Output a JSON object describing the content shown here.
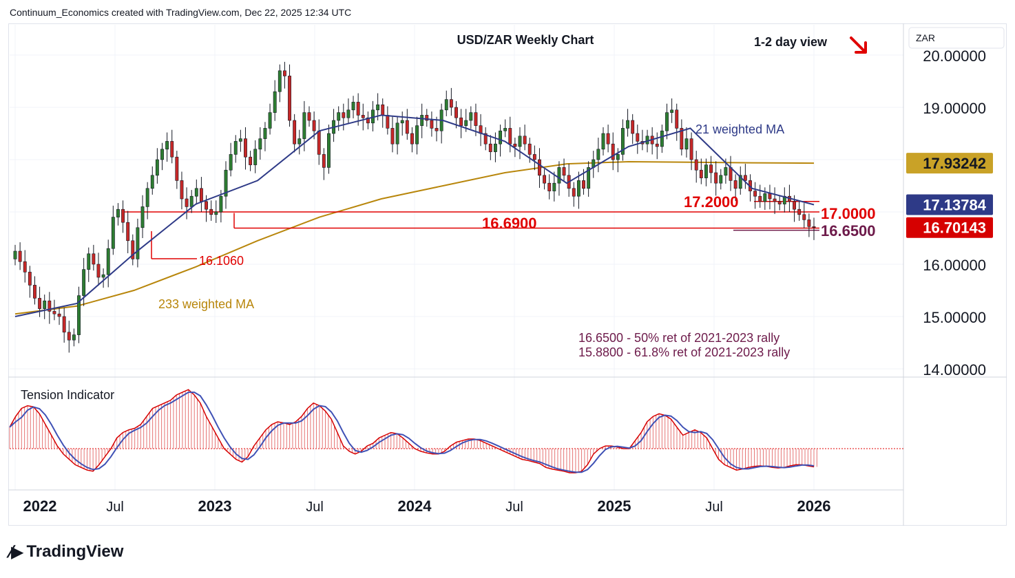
{
  "header": {
    "credit": "Continuum_Economics created with TradingView.com, Dec 22, 2025 12:34 UTC"
  },
  "footer": {
    "brand": "TradingView",
    "logo_icon": "tradingview-logo-icon"
  },
  "chart_data": {
    "type": "candlestick",
    "title": "USD/ZAR Weekly Chart",
    "view_label": "1-2 day view",
    "view_arrow": "down-right-arrow-icon",
    "currency_label": "ZAR",
    "y_axis": {
      "ticks": [
        "20.00000",
        "19.00000",
        "16.00000",
        "15.00000",
        "14.00000"
      ],
      "ylim": [
        13.9,
        20.5
      ]
    },
    "x_axis": {
      "ticks": [
        "2022",
        "Jul",
        "2023",
        "Jul",
        "2024",
        "Jul",
        "2025",
        "Jul",
        "2026"
      ]
    },
    "price_tags": [
      {
        "label": "17.93242",
        "value": 17.93242,
        "bg": "#c9a227",
        "fg": "#131722"
      },
      {
        "label": "17.13784",
        "value": 17.13784,
        "bg": "#2e3a87",
        "fg": "#ffffff"
      },
      {
        "label": "16.70143",
        "value": 16.70143,
        "bg": "#d60000",
        "fg": "#ffffff"
      }
    ],
    "levels": [
      {
        "label": "17.2000",
        "value": 17.2
      },
      {
        "label": "17.0000",
        "value": 17.0
      },
      {
        "label": "16.6900",
        "value": 16.69
      },
      {
        "label": "16.6500",
        "value": 16.65
      },
      {
        "label": "16.1060",
        "value": 16.106
      }
    ],
    "ma_labels": {
      "ma21": "21 weighted MA",
      "ma233": "233 weighted MA"
    },
    "notes": [
      "16.6500 - 50% ret of 2021-2023 rally",
      "15.8800 - 61.8% ret of 2021-2023 rally"
    ],
    "closes": [
      16.25,
      16.05,
      15.85,
      15.6,
      15.35,
      15.15,
      15.3,
      15.1,
      15.05,
      15.0,
      14.7,
      14.55,
      14.65,
      15.4,
      15.9,
      16.2,
      16.0,
      15.75,
      15.8,
      16.3,
      16.9,
      17.05,
      16.8,
      16.45,
      16.1,
      16.7,
      17.1,
      17.45,
      17.7,
      18.0,
      18.2,
      18.35,
      18.05,
      17.6,
      17.25,
      17.1,
      17.3,
      17.45,
      17.2,
      17.05,
      16.95,
      17.0,
      17.3,
      17.8,
      18.1,
      18.35,
      18.4,
      18.05,
      17.9,
      18.2,
      18.4,
      18.6,
      18.9,
      19.3,
      19.7,
      19.6,
      18.75,
      18.3,
      18.4,
      18.9,
      18.75,
      18.55,
      18.1,
      17.85,
      18.5,
      18.75,
      18.9,
      18.8,
      18.95,
      19.1,
      18.85,
      18.8,
      18.7,
      18.95,
      19.05,
      18.85,
      18.6,
      18.3,
      18.7,
      18.75,
      18.5,
      18.3,
      18.65,
      18.85,
      18.75,
      18.6,
      18.55,
      18.95,
      19.15,
      19.0,
      18.8,
      18.65,
      18.75,
      18.9,
      18.65,
      18.5,
      18.3,
      18.15,
      18.3,
      18.55,
      18.6,
      18.3,
      18.25,
      18.45,
      18.3,
      18.1,
      18.0,
      17.7,
      17.55,
      17.4,
      17.55,
      17.85,
      17.7,
      17.45,
      17.3,
      17.6,
      17.45,
      17.85,
      18.0,
      18.2,
      18.5,
      18.3,
      18.0,
      18.1,
      18.6,
      18.75,
      18.5,
      18.35,
      18.3,
      18.45,
      18.3,
      18.25,
      18.55,
      18.9,
      18.95,
      18.6,
      18.2,
      18.4,
      18.0,
      17.8,
      17.65,
      17.9,
      17.75,
      17.55,
      17.7,
      17.85,
      17.6,
      17.45,
      17.7,
      17.6,
      17.4,
      17.3,
      17.2,
      17.35,
      17.25,
      17.2,
      17.15,
      17.3,
      17.2,
      17.05,
      16.95,
      16.85,
      16.72,
      16.70143
    ],
    "ma21_points": [
      [
        0,
        15.0
      ],
      [
        13,
        15.25
      ],
      [
        25,
        16.2
      ],
      [
        38,
        17.15
      ],
      [
        51,
        17.6
      ],
      [
        64,
        18.55
      ],
      [
        77,
        18.85
      ],
      [
        90,
        18.75
      ],
      [
        103,
        18.35
      ],
      [
        116,
        17.55
      ],
      [
        129,
        18.25
      ],
      [
        142,
        18.6
      ],
      [
        155,
        17.45
      ],
      [
        168,
        17.13784
      ]
    ],
    "ma233_points": [
      [
        0,
        15.05
      ],
      [
        13,
        15.2
      ],
      [
        25,
        15.5
      ],
      [
        38,
        15.95
      ],
      [
        51,
        16.45
      ],
      [
        64,
        16.9
      ],
      [
        77,
        17.25
      ],
      [
        90,
        17.5
      ],
      [
        103,
        17.75
      ],
      [
        116,
        17.92
      ],
      [
        129,
        17.96
      ],
      [
        142,
        17.95
      ],
      [
        155,
        17.94
      ],
      [
        168,
        17.93242
      ]
    ],
    "tension": {
      "label": "Tension Indicator",
      "values": [
        0.4,
        0.6,
        0.75,
        0.8,
        0.78,
        0.65,
        0.45,
        0.25,
        0.05,
        -0.1,
        -0.2,
        -0.3,
        -0.35,
        -0.4,
        -0.42,
        -0.3,
        -0.15,
        0.0,
        0.2,
        0.3,
        0.35,
        0.38,
        0.45,
        0.6,
        0.75,
        0.8,
        0.85,
        0.9,
        1.0,
        1.05,
        1.1,
        1.0,
        0.85,
        0.6,
        0.4,
        0.2,
        0.0,
        -0.1,
        -0.2,
        -0.25,
        -0.15,
        0.05,
        0.2,
        0.35,
        0.45,
        0.5,
        0.48,
        0.45,
        0.5,
        0.6,
        0.75,
        0.85,
        0.8,
        0.7,
        0.55,
        0.3,
        0.05,
        -0.05,
        -0.1,
        -0.05,
        0.05,
        0.1,
        0.2,
        0.25,
        0.3,
        0.28,
        0.2,
        0.1,
        0.0,
        -0.05,
        -0.08,
        -0.1,
        -0.1,
        -0.05,
        0.05,
        0.12,
        0.15,
        0.18,
        0.18,
        0.15,
        0.1,
        0.05,
        0.0,
        -0.05,
        -0.1,
        -0.15,
        -0.2,
        -0.22,
        -0.25,
        -0.28,
        -0.35,
        -0.38,
        -0.4,
        -0.42,
        -0.45,
        -0.45,
        -0.42,
        -0.3,
        -0.1,
        0.0,
        0.05,
        0.05,
        0.03,
        0.0,
        0.0,
        0.15,
        0.3,
        0.5,
        0.6,
        0.65,
        0.62,
        0.55,
        0.4,
        0.25,
        0.3,
        0.35,
        0.3,
        0.2,
        0.0,
        -0.2,
        -0.3,
        -0.35,
        -0.4,
        -0.38,
        -0.35,
        -0.33,
        -0.32,
        -0.33,
        -0.35,
        -0.36,
        -0.35,
        -0.32,
        -0.3,
        -0.3,
        -0.32,
        -0.34
      ]
    }
  }
}
